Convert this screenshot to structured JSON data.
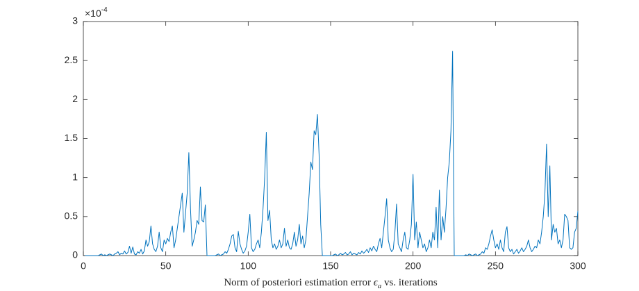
{
  "chart_data": {
    "type": "line",
    "y_multiplier": {
      "base": "×10",
      "exponent": "-4"
    },
    "xlabel": {
      "before": "Norm of posteriori estimation error ",
      "symbol": "ϵ",
      "subscript": "a",
      "after": " vs. iterations"
    },
    "xlim": [
      0,
      300
    ],
    "xticks": [
      0,
      50,
      100,
      150,
      200,
      250,
      300
    ],
    "ylim": [
      0,
      3
    ],
    "yticks": [
      0,
      0.5,
      1,
      1.5,
      2,
      2.5,
      3
    ],
    "grid": false,
    "series": [
      {
        "color": "#0072bd",
        "x": [
          1,
          2,
          3,
          4,
          5,
          6,
          7,
          8,
          9,
          10,
          11,
          12,
          13,
          14,
          15,
          16,
          17,
          18,
          19,
          20,
          21,
          22,
          23,
          24,
          25,
          26,
          27,
          28,
          29,
          30,
          31,
          32,
          33,
          34,
          35,
          36,
          37,
          38,
          39,
          40,
          41,
          42,
          43,
          44,
          45,
          46,
          47,
          48,
          49,
          50,
          51,
          52,
          53,
          54,
          55,
          56,
          57,
          58,
          59,
          60,
          61,
          62,
          63,
          64,
          65,
          66,
          67,
          68,
          69,
          70,
          71,
          72,
          73,
          74,
          75,
          76,
          77,
          78,
          79,
          80,
          81,
          82,
          83,
          84,
          85,
          86,
          87,
          88,
          89,
          90,
          91,
          92,
          93,
          94,
          95,
          96,
          97,
          98,
          99,
          100,
          101,
          102,
          103,
          104,
          105,
          106,
          107,
          108,
          109,
          110,
          111,
          112,
          113,
          114,
          115,
          116,
          117,
          118,
          119,
          120,
          121,
          122,
          123,
          124,
          125,
          126,
          127,
          128,
          129,
          130,
          131,
          132,
          133,
          134,
          135,
          136,
          137,
          138,
          139,
          140,
          141,
          142,
          143,
          144,
          145,
          146,
          147,
          148,
          149,
          150,
          151,
          152,
          153,
          154,
          155,
          156,
          157,
          158,
          159,
          160,
          161,
          162,
          163,
          164,
          165,
          166,
          167,
          168,
          169,
          170,
          171,
          172,
          173,
          174,
          175,
          176,
          177,
          178,
          179,
          180,
          181,
          182,
          183,
          184,
          185,
          186,
          187,
          188,
          189,
          190,
          191,
          192,
          193,
          194,
          195,
          196,
          197,
          198,
          199,
          200,
          201,
          202,
          203,
          204,
          205,
          206,
          207,
          208,
          209,
          210,
          211,
          212,
          213,
          214,
          215,
          216,
          217,
          218,
          219,
          220,
          221,
          222,
          223,
          224,
          225,
          226,
          227,
          228,
          229,
          230,
          231,
          232,
          233,
          234,
          235,
          236,
          237,
          238,
          239,
          240,
          241,
          242,
          243,
          244,
          245,
          246,
          247,
          248,
          249,
          250,
          251,
          252,
          253,
          254,
          255,
          256,
          257,
          258,
          259,
          260,
          261,
          262,
          263,
          264,
          265,
          266,
          267,
          268,
          269,
          270,
          271,
          272,
          273,
          274,
          275,
          276,
          277,
          278,
          279,
          280,
          281,
          282,
          283,
          284,
          285,
          286,
          287,
          288,
          289,
          290,
          291,
          292,
          293,
          294,
          295,
          296,
          297,
          298,
          299,
          300
        ],
        "values": [
          0,
          0,
          0,
          0,
          0,
          0,
          0,
          0,
          0,
          0.01,
          0.02,
          0,
          0.01,
          0,
          0.01,
          0.02,
          0.01,
          0,
          0.02,
          0.03,
          0.05,
          0.01,
          0.03,
          0.02,
          0.06,
          0.02,
          0.04,
          0.12,
          0.03,
          0.11,
          0.02,
          0.01,
          0.05,
          0.03,
          0.08,
          0.02,
          0.06,
          0.2,
          0.12,
          0.18,
          0.38,
          0.15,
          0.08,
          0.05,
          0.12,
          0.3,
          0.1,
          0.05,
          0.2,
          0.15,
          0.22,
          0.18,
          0.3,
          0.38,
          0.1,
          0.2,
          0.35,
          0.5,
          0.65,
          0.8,
          0.3,
          0.55,
          0.8,
          1.32,
          0.6,
          0.12,
          0.2,
          0.3,
          0.45,
          0.4,
          0.88,
          0.45,
          0.43,
          0.65,
          0,
          0,
          0,
          0,
          0,
          0,
          0.01,
          0.02,
          0,
          0.01,
          0.02,
          0.05,
          0.03,
          0.08,
          0.15,
          0.25,
          0.27,
          0.1,
          0.05,
          0.31,
          0.15,
          0.08,
          0.03,
          0.06,
          0.12,
          0.3,
          0.53,
          0.1,
          0.05,
          0.08,
          0.15,
          0.2,
          0.1,
          0.3,
          0.6,
          1.0,
          1.58,
          0.45,
          0.58,
          0.2,
          0.1,
          0.15,
          0.08,
          0.12,
          0.2,
          0.1,
          0.15,
          0.35,
          0.12,
          0.2,
          0.1,
          0.08,
          0.15,
          0.3,
          0.12,
          0.2,
          0.4,
          0.15,
          0.25,
          0.1,
          0.2,
          0.5,
          0.8,
          1.2,
          1.1,
          1.6,
          1.55,
          1.81,
          1.3,
          0.4,
          0,
          0,
          0,
          0,
          0,
          0,
          0,
          0.01,
          0.02,
          0,
          0.01,
          0.03,
          0.01,
          0.02,
          0.04,
          0.01,
          0.02,
          0.05,
          0.01,
          0.03,
          0.02,
          0.01,
          0.04,
          0.02,
          0.06,
          0.03,
          0.05,
          0.08,
          0.04,
          0.1,
          0.06,
          0.12,
          0.08,
          0.05,
          0.15,
          0.22,
          0.1,
          0.3,
          0.5,
          0.73,
          0.2,
          0.1,
          0.05,
          0.08,
          0.3,
          0.66,
          0.15,
          0.1,
          0.05,
          0.2,
          0.3,
          0.1,
          0.08,
          0.2,
          0.4,
          1.04,
          0.2,
          0.43,
          0.1,
          0.3,
          0.2,
          0.1,
          0.15,
          0.05,
          0.1,
          0.2,
          0.1,
          0.3,
          0.2,
          0.62,
          0.1,
          0.84,
          0.2,
          0.5,
          0.3,
          0.6,
          1.0,
          1.2,
          1.6,
          2.62,
          0,
          0,
          0,
          0,
          0,
          0,
          0,
          0.01,
          0,
          0.02,
          0.01,
          0,
          0.01,
          0.02,
          0,
          0.01,
          0.02,
          0.05,
          0.03,
          0.1,
          0.08,
          0.15,
          0.25,
          0.33,
          0.2,
          0.1,
          0.15,
          0.08,
          0.2,
          0.1,
          0.05,
          0.3,
          0.37,
          0.1,
          0.05,
          0.08,
          0.02,
          0.05,
          0.08,
          0.03,
          0.06,
          0.1,
          0.05,
          0.08,
          0.12,
          0.2,
          0.1,
          0.05,
          0.08,
          0.12,
          0.1,
          0.2,
          0.15,
          0.3,
          0.5,
          0.8,
          1.43,
          0.5,
          1.15,
          0.2,
          0.4,
          0.3,
          0.35,
          0.15,
          0.2,
          0.1,
          0.2,
          0.53,
          0.5,
          0.45,
          0.1,
          0.08,
          0.1,
          0.3,
          0.35,
          0.57
        ]
      }
    ]
  }
}
